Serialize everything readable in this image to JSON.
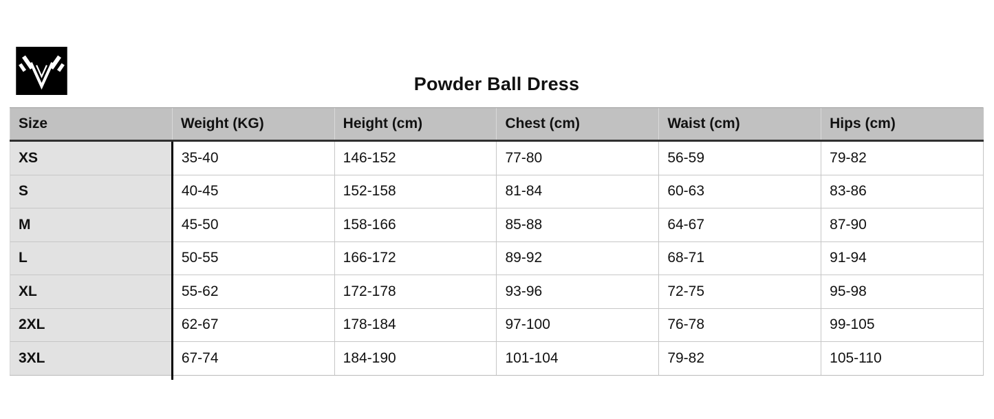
{
  "title": "Powder Ball Dress",
  "logo": {
    "icon": "brand-v-wings-logo"
  },
  "colors": {
    "page_bg": "#ffffff",
    "text": "#111111",
    "logo_bg": "#000000",
    "logo_fg": "#ffffff",
    "header_bg": "#c1c1c1",
    "header_top_rule": "#9b9b9b",
    "header_divider": "#d9d9d9",
    "heavy_rule": "#2f2f2f",
    "size_col_bg": "#e2e2e2",
    "grid_line": "#c6c6c6",
    "size_divider": "#000000"
  },
  "table": {
    "columns": [
      "Size",
      "Weight (KG)",
      "Height (cm)",
      "Chest (cm)",
      "Waist (cm)",
      "Hips (cm)"
    ],
    "rows": [
      [
        "XS",
        "35-40",
        "146-152",
        "77-80",
        "56-59",
        "79-82"
      ],
      [
        "S",
        "40-45",
        "152-158",
        "81-84",
        "60-63",
        "83-86"
      ],
      [
        "M",
        "45-50",
        "158-166",
        "85-88",
        "64-67",
        "87-90"
      ],
      [
        "L",
        "50-55",
        "166-172",
        "89-92",
        "68-71",
        "91-94"
      ],
      [
        "XL",
        "55-62",
        "172-178",
        "93-96",
        "72-75",
        "95-98"
      ],
      [
        "2XL",
        "62-67",
        "178-184",
        "97-100",
        "76-78",
        "99-105"
      ],
      [
        "3XL",
        "67-74",
        "184-190",
        "101-104",
        "79-82",
        "105-110"
      ]
    ]
  }
}
